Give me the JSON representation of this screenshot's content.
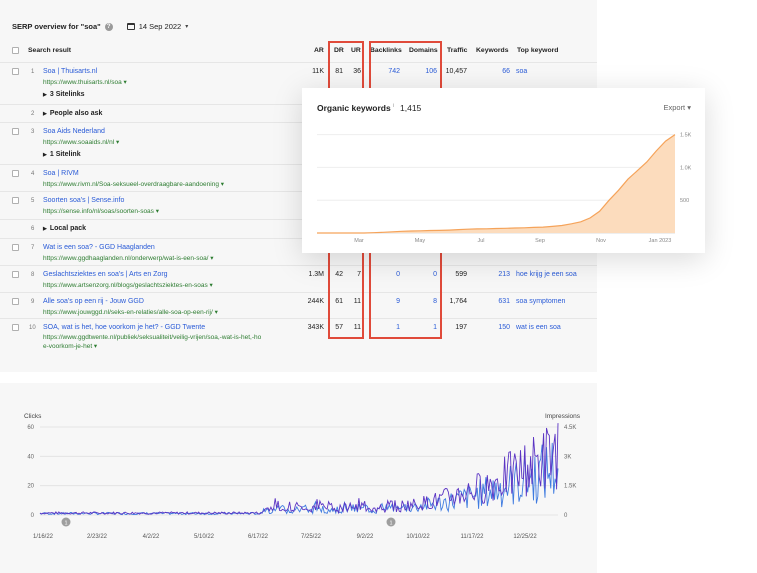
{
  "serp": {
    "title": "SERP overview for \"soa\"",
    "date": "14 Sep 2022",
    "columns": {
      "result": "Search result",
      "ar": "AR",
      "dr": "DR",
      "ur": "UR",
      "backlinks": "Backlinks",
      "domains": "Domains",
      "traffic": "Traffic",
      "keywords": "Keywords",
      "top_keyword": "Top keyword"
    },
    "rows": [
      {
        "num": "1",
        "title": "Soa | Thuisarts.nl",
        "url": "https://www.thuisarts.nl/soa ▾",
        "ar": "11K",
        "dr": "81",
        "ur": "36",
        "backlinks": "742",
        "domains": "106",
        "traffic": "10,457",
        "keywords": "66",
        "top_keyword": "soa",
        "extra": "3 Sitelinks"
      },
      {
        "num": "2",
        "title": "People also ask"
      },
      {
        "num": "3",
        "title": "Soa Aids Nederland",
        "url": "https://www.soaaids.nl/nl ▾",
        "extra": "1 Sitelink"
      },
      {
        "num": "4",
        "title": "Soa | RIVM",
        "url": "https://www.rivm.nl/Soa-seksueel-overdraagbare-aandoening ▾"
      },
      {
        "num": "5",
        "title": "Soorten soa's | Sense.info",
        "url": "https://sense.info/nl/soas/soorten-soas ▾"
      },
      {
        "num": "6",
        "title": "Local pack"
      },
      {
        "num": "7",
        "title": "Wat is een soa? - GGD Haaglanden",
        "url": "https://www.ggdhaaglanden.nl/onderwerp/wat-is-een-soa/ ▾"
      },
      {
        "num": "8",
        "title": "Geslachtsziektes en soa's | Arts en Zorg",
        "url": "https://www.artsenzorg.nl/blogs/geslachtsziektes-en-soas ▾",
        "ar": "1.3M",
        "dr": "42",
        "ur": "7",
        "backlinks": "0",
        "domains": "0",
        "traffic": "599",
        "keywords": "213",
        "top_keyword": "hoe krijg je een soa"
      },
      {
        "num": "9",
        "title": "Alle soa's op een rij - Jouw GGD",
        "url": "https://www.jouwggd.nl/seks-en-relaties/alle-soa-op-een-rij/ ▾",
        "ar": "244K",
        "dr": "61",
        "ur": "11",
        "backlinks": "9",
        "domains": "8",
        "traffic": "1,764",
        "keywords": "631",
        "top_keyword": "soa symptomen"
      },
      {
        "num": "10",
        "title": "SOA, wat is het, hoe voorkom je het? - GGD Twente",
        "url": "https://www.ggdtwente.nl/publiek/seksualiteit/veilig-vrijen/soa,-wat-is-het,-ho",
        "url2": "e-voorkom-je-het ▾",
        "ar": "343K",
        "dr": "57",
        "ur": "11",
        "backlinks": "1",
        "domains": "1",
        "traffic": "197",
        "keywords": "150",
        "top_keyword": "wat is een soa"
      }
    ]
  },
  "popup": {
    "title": "Organic keywords",
    "info": "i",
    "value": "1,415",
    "export": "Export ▾"
  },
  "chart_data": [
    {
      "type": "area",
      "title": "Organic keywords",
      "x_ticks": [
        "Mar",
        "May",
        "Jul",
        "Sep",
        "Nov",
        "Jan 2023"
      ],
      "y_ticks": [
        "1.5K",
        "1.0K",
        "500"
      ],
      "ylim": [
        0,
        1600
      ],
      "grid": true,
      "color": "#f5a35a",
      "series": [
        {
          "values": [
            0,
            0,
            0,
            0,
            0,
            0,
            5,
            10,
            18,
            26,
            30,
            34,
            38,
            40,
            44,
            52,
            58,
            62,
            64,
            68,
            72,
            76,
            80,
            85,
            90,
            100,
            115,
            140,
            170,
            230,
            330,
            500,
            650,
            820,
            950,
            1080,
            1250,
            1400,
            1500
          ]
        }
      ]
    },
    {
      "type": "line",
      "ylabel_left": "Clicks",
      "ylabel_right": "Impressions",
      "x_ticks": [
        "1/16/22",
        "2/23/22",
        "4/2/22",
        "5/10/22",
        "6/17/22",
        "7/25/22",
        "9/2/22",
        "10/10/22",
        "11/17/22",
        "12/25/22"
      ],
      "y_left_ticks": [
        "60",
        "40",
        "20",
        "0"
      ],
      "y_right_ticks": [
        "4.5K",
        "3K",
        "1.5K",
        "0"
      ],
      "ylim_left": [
        0,
        60
      ],
      "ylim_right": [
        0,
        4500
      ],
      "grid": true,
      "annotations": [
        "1",
        "1"
      ],
      "series": [
        {
          "axis": "left",
          "color": "#5b34c4"
        },
        {
          "axis": "right",
          "color": "#3f7be0"
        }
      ]
    }
  ],
  "colors": {
    "link": "#2a5bd7",
    "url": "#2e7d32",
    "highlight": "#e04a3a",
    "clicks": "#5b34c4",
    "impressions": "#3f7be0"
  }
}
